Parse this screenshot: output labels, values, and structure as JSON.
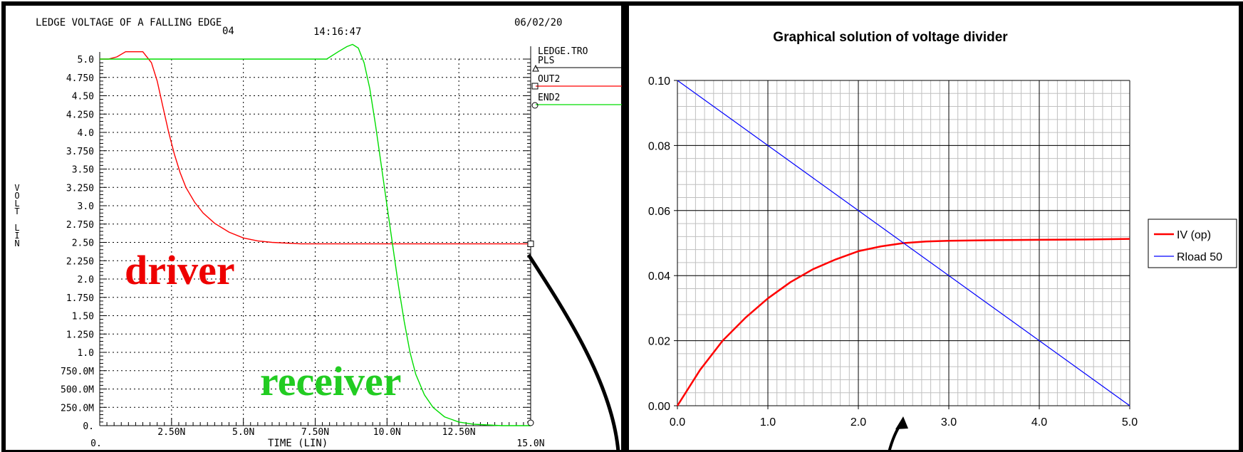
{
  "chart_data": [
    {
      "type": "line",
      "title": "LEDGE VOLTAGE OF A FALLING EDGE",
      "header_code": "04",
      "time": "14:16:47",
      "date": "06/02/20",
      "ylabel_lines": [
        "VOLT",
        "LIN"
      ],
      "xlabel": "TIME (LIN)",
      "y_ticks": [
        "5.0",
        "4.750",
        "4.50",
        "4.250",
        "4.0",
        "3.750",
        "3.50",
        "3.250",
        "3.0",
        "2.750",
        "2.50",
        "2.250",
        "2.0",
        "1.750",
        "1.50",
        "1.250",
        "1.0",
        "750.0M",
        "500.0M",
        "250.0M",
        "0."
      ],
      "x_ticks": [
        "0.",
        "2.50N",
        "5.0N",
        "7.50N",
        "10.0N",
        "12.50N",
        "15.0N"
      ],
      "x_tick_values": [
        0,
        2.5,
        5,
        7.5,
        10,
        12.5,
        15
      ],
      "xlim": [
        0,
        15
      ],
      "ylim": [
        0,
        5
      ],
      "legend_file": "LEDGE.TRO",
      "series": [
        {
          "name": "PLS",
          "color": "#000000",
          "marker": "triangle",
          "values": []
        },
        {
          "name": "OUT2",
          "color": "#ff0000",
          "marker": "square",
          "x": [
            0,
            0.3,
            0.6,
            0.9,
            1.2,
            1.5,
            1.8,
            2.0,
            2.2,
            2.4,
            2.6,
            2.8,
            3.0,
            3.3,
            3.6,
            4.0,
            4.5,
            5.0,
            5.5,
            6.0,
            7.0,
            8.0,
            10.0,
            12.0,
            15.0
          ],
          "y": [
            5.0,
            5.0,
            5.03,
            5.1,
            5.1,
            5.1,
            4.95,
            4.7,
            4.35,
            4.0,
            3.7,
            3.45,
            3.25,
            3.05,
            2.9,
            2.76,
            2.64,
            2.56,
            2.52,
            2.5,
            2.48,
            2.48,
            2.48,
            2.48,
            2.48
          ]
        },
        {
          "name": "END2",
          "color": "#00dd00",
          "marker": "diamond",
          "x": [
            0,
            2,
            4,
            6,
            7.5,
            7.9,
            8.3,
            8.6,
            8.8,
            9.0,
            9.2,
            9.4,
            9.6,
            9.8,
            10.0,
            10.2,
            10.4,
            10.6,
            10.8,
            11.0,
            11.3,
            11.6,
            12.0,
            12.5,
            13.0,
            13.5,
            14.0,
            15.0
          ],
          "y": [
            5.0,
            5.0,
            5.0,
            5.0,
            5.0,
            5.0,
            5.1,
            5.17,
            5.2,
            5.15,
            4.95,
            4.6,
            4.1,
            3.55,
            3.0,
            2.45,
            1.9,
            1.42,
            1.0,
            0.7,
            0.42,
            0.25,
            0.12,
            0.05,
            0.02,
            0.01,
            0.0,
            0.0
          ]
        }
      ],
      "annotations": [
        {
          "text": "driver",
          "color": "#ee0000"
        },
        {
          "text": "receiver",
          "color": "#22cc22"
        }
      ]
    },
    {
      "type": "line",
      "title": "Graphical solution of voltage divider",
      "xlim": [
        0,
        5
      ],
      "ylim": [
        0,
        0.1
      ],
      "x_ticks": [
        "0.0",
        "1.0",
        "2.0",
        "3.0",
        "4.0",
        "5.0"
      ],
      "y_ticks": [
        "0.00",
        "0.02",
        "0.04",
        "0.06",
        "0.08",
        "0.10"
      ],
      "grid": "on",
      "legend_position": "right",
      "series": [
        {
          "name": "IV (op)",
          "color": "#ff0000",
          "x": [
            0,
            0.25,
            0.5,
            0.75,
            1.0,
            1.25,
            1.5,
            1.75,
            2.0,
            2.25,
            2.5,
            2.75,
            3.0,
            3.5,
            4.0,
            4.5,
            5.0
          ],
          "y": [
            0,
            0.011,
            0.02,
            0.027,
            0.033,
            0.038,
            0.042,
            0.045,
            0.0475,
            0.049,
            0.05,
            0.0505,
            0.0507,
            0.0509,
            0.051,
            0.0511,
            0.0513
          ]
        },
        {
          "name": "Rload 50",
          "color": "#0000ff",
          "x": [
            0,
            5
          ],
          "y": [
            0.1,
            0
          ]
        }
      ]
    }
  ]
}
